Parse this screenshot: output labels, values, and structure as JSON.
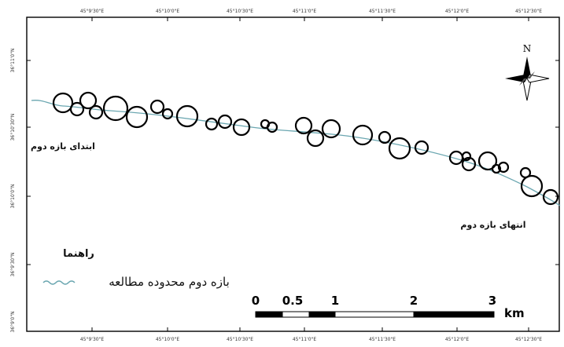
{
  "map": {
    "graticule": {
      "top_labels": [
        "45°9'30\"E",
        "45°10'0\"E",
        "45°10'30\"E",
        "45°11'0\"E",
        "45°11'30\"E",
        "45°12'0\"E",
        "45°12'30\"E"
      ],
      "bottom_labels": [
        "45°9'30\"E",
        "45°10'0\"E",
        "45°10'30\"E",
        "45°11'0\"E",
        "45°11'30\"E",
        "45°12'0\"E",
        "45°12'30\"E"
      ],
      "left_labels": [
        "36°11'0\"N",
        "36°10'30\"N",
        "36°10'0\"N",
        "36°9'30\"N",
        "36°9'0\"N"
      ]
    },
    "north_arrow": {
      "label": "N"
    },
    "places": {
      "start_label": "ابتدای بازه دوم",
      "end_label": "انتهای بازه دوم"
    },
    "legend": {
      "title": "راهنما",
      "item": "بازه دوم محدوده مطالعه",
      "item_color": "#6aa6b0"
    },
    "scale_bar": {
      "ticks": [
        "0",
        "0.5",
        "1",
        "2",
        "3"
      ],
      "unit": "km"
    },
    "colors": {
      "river": "#6aa6b0",
      "frame": "#000000",
      "circle_stroke": "#000000"
    }
  }
}
